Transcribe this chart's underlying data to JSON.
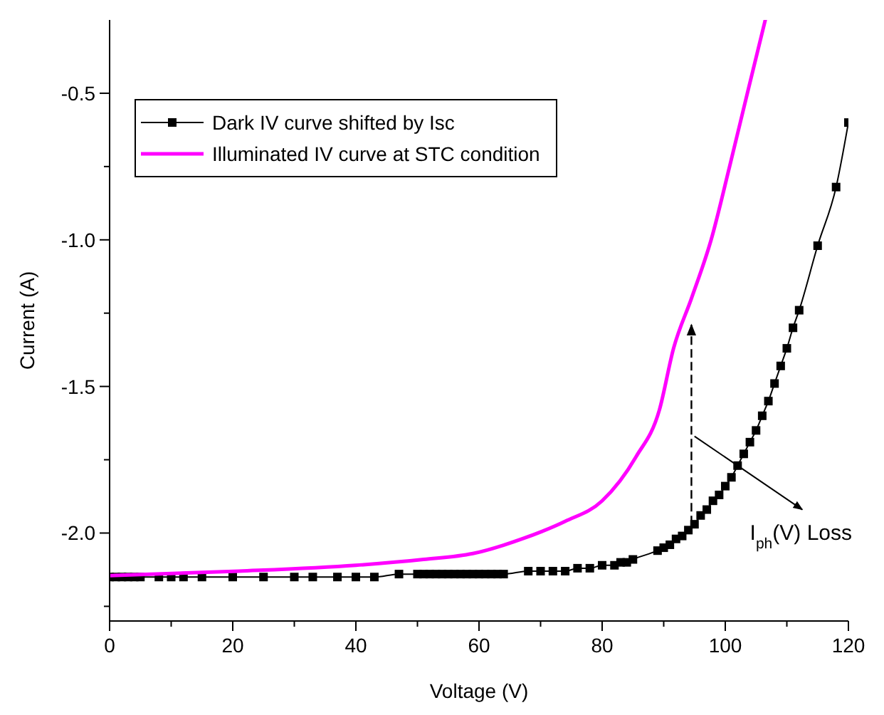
{
  "chart_data": {
    "type": "line",
    "xlabel": "Voltage (V)",
    "ylabel": "Current (A)",
    "xlim": [
      0,
      120
    ],
    "ylim": [
      -2.3,
      -0.25
    ],
    "xticks": [
      0,
      {
        "value": 10,
        "label": null
      },
      20,
      {
        "value": 30,
        "label": null
      },
      40,
      {
        "value": 50,
        "label": null
      },
      60,
      {
        "value": 70,
        "label": null
      },
      80,
      {
        "value": 90,
        "label": null
      },
      100,
      {
        "value": 110,
        "label": null
      },
      120
    ],
    "yticks": [
      {
        "value": -0.5,
        "label": "-0.5"
      },
      {
        "value": -0.75,
        "label": null
      },
      {
        "value": -1.0,
        "label": "-1.0"
      },
      {
        "value": -1.25,
        "label": null
      },
      {
        "value": -1.5,
        "label": "-1.5"
      },
      {
        "value": -1.75,
        "label": null
      },
      {
        "value": -2.0,
        "label": "-2.0"
      },
      {
        "value": -2.25,
        "label": null
      }
    ],
    "legend": "top left",
    "annotations": [
      "I$_{ph}$(V) Loss"
    ],
    "series": [
      {
        "name": "Dark IV curve shifted by Isc",
        "color": "#000000",
        "marker": "square",
        "x": [
          0,
          1,
          2,
          3,
          4,
          5,
          8,
          10,
          12,
          15,
          20,
          25,
          30,
          33,
          37,
          40,
          43,
          47,
          50,
          51,
          52,
          53,
          54,
          55,
          56,
          57,
          58,
          59,
          60,
          61,
          62,
          63,
          64,
          68,
          70,
          72,
          74,
          76,
          78,
          80,
          82,
          83,
          84,
          85,
          89,
          90,
          91,
          92,
          93,
          94,
          95,
          96,
          97,
          98,
          99,
          100,
          101,
          102,
          103,
          104,
          105,
          106,
          107,
          108,
          109,
          110,
          111,
          112,
          115,
          118,
          120
        ],
        "values": [
          -2.15,
          -2.15,
          -2.15,
          -2.15,
          -2.15,
          -2.15,
          -2.15,
          -2.15,
          -2.15,
          -2.15,
          -2.15,
          -2.15,
          -2.15,
          -2.15,
          -2.15,
          -2.15,
          -2.15,
          -2.14,
          -2.14,
          -2.14,
          -2.14,
          -2.14,
          -2.14,
          -2.14,
          -2.14,
          -2.14,
          -2.14,
          -2.14,
          -2.14,
          -2.14,
          -2.14,
          -2.14,
          -2.14,
          -2.13,
          -2.13,
          -2.13,
          -2.13,
          -2.12,
          -2.12,
          -2.11,
          -2.11,
          -2.1,
          -2.1,
          -2.09,
          -2.06,
          -2.05,
          -2.04,
          -2.02,
          -2.01,
          -1.99,
          -1.97,
          -1.94,
          -1.92,
          -1.89,
          -1.87,
          -1.84,
          -1.81,
          -1.77,
          -1.73,
          -1.69,
          -1.65,
          -1.6,
          -1.55,
          -1.49,
          -1.43,
          -1.37,
          -1.3,
          -1.24,
          -1.02,
          -0.82,
          -0.6
        ]
      },
      {
        "name": "Illuminated IV curve at STC condition",
        "color": "#ff00ff",
        "marker": "none",
        "x": [
          0,
          21,
          40,
          51,
          59,
          67,
          74,
          80,
          85.5,
          89.3,
          91.6,
          94.5,
          97.7,
          100.7,
          103.7,
          106.5
        ],
        "values": [
          -2.145,
          -2.13,
          -2.11,
          -2.09,
          -2.07,
          -2.02,
          -1.96,
          -1.89,
          -1.74,
          -1.58,
          -1.37,
          -1.2,
          -1.0,
          -0.75,
          -0.49,
          -0.25
        ]
      }
    ]
  }
}
